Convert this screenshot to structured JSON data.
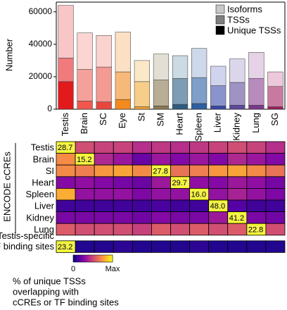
{
  "chart_data": [
    {
      "type": "stacked_bar",
      "ylabel": "Number",
      "categories": [
        "Testis",
        "Brain",
        "SC",
        "Eye",
        "St",
        "SM",
        "Heart",
        "Spleen",
        "Liver",
        "Kidney",
        "Lung",
        "SG"
      ],
      "series": [
        {
          "name": "Isoforms",
          "color": "#c8c8c8",
          "colors": [
            "#f8c6c7",
            "#fad5d2",
            "#fad2ce",
            "#fbe0c4",
            "#fbe8c8",
            "#e3dfd4",
            "#ccdae3",
            "#cdd9ea",
            "#d0d4ed",
            "#dbd6ea",
            "#e6d2e6",
            "#ecc8da"
          ],
          "values": [
            32500,
            22500,
            19500,
            24500,
            13000,
            16000,
            14000,
            18000,
            12000,
            14500,
            16000,
            9000
          ]
        },
        {
          "name": "TSSs",
          "color": "#808080",
          "colors": [
            "#f07a7c",
            "#f5a09a",
            "#f39a92",
            "#f7b97a",
            "#f7cd8a",
            "#b8ae95",
            "#7d9db4",
            "#7f9fc8",
            "#8a94cc",
            "#9f93c4",
            "#b88bbd",
            "#c879a0"
          ],
          "values": [
            14500,
            19500,
            21500,
            17000,
            15500,
            16000,
            16000,
            16000,
            12500,
            14000,
            16500,
            12500
          ]
        },
        {
          "name": "Unique TSSs",
          "color": "#000000",
          "colors": [
            "#e31a1c",
            "#f0584f",
            "#e8473e",
            "#f28a1e",
            "#f0a030",
            "#8a7a55",
            "#2e5d7e",
            "#2f5f9e",
            "#3848a8",
            "#5c4a9c",
            "#7a3a8a",
            "#9a1c5a"
          ],
          "values": [
            17000,
            5000,
            4500,
            6000,
            1500,
            2000,
            3000,
            3500,
            2000,
            2500,
            2500,
            1500
          ]
        }
      ],
      "ylim": [
        0,
        66000
      ],
      "yticks": [
        0,
        20000,
        40000,
        60000
      ],
      "legend": "upper right"
    },
    {
      "type": "heatmap",
      "group_label": "ENCODE cCREs",
      "colorbar_labels": [
        "0",
        "Max"
      ],
      "colorbar_caption": [
        "% of unique TSSs",
        "overlapping with",
        "cCREs or TF binding sites"
      ],
      "rows": [
        {
          "label": "Testis",
          "values": [
            28.7,
            15,
            14,
            14,
            12,
            13,
            12,
            13,
            14,
            15,
            14,
            12
          ],
          "value_labels": [
            "28.7",
            null,
            null,
            null,
            null,
            null,
            null,
            null,
            null,
            null,
            null,
            null
          ]
        },
        {
          "label": "Brain",
          "values": [
            11,
            15.2,
            6,
            5,
            3,
            5,
            4,
            5,
            4,
            6,
            5,
            4
          ],
          "value_labels": [
            null,
            "15.2",
            null,
            null,
            null,
            null,
            null,
            null,
            null,
            null,
            null,
            null
          ]
        },
        {
          "label": "SI",
          "values": [
            20,
            19,
            21,
            22,
            20,
            27.8,
            18,
            19,
            21,
            22,
            20,
            18
          ],
          "value_labels": [
            null,
            null,
            null,
            null,
            null,
            "27.8",
            null,
            null,
            null,
            null,
            null,
            null
          ]
        },
        {
          "label": "Heart",
          "values": [
            8,
            9,
            8,
            7,
            6,
            10,
            29.7,
            9,
            8,
            10,
            9,
            7
          ],
          "value_labels": [
            null,
            null,
            null,
            null,
            null,
            null,
            "29.7",
            null,
            null,
            null,
            null,
            null
          ]
        },
        {
          "label": "Spleen",
          "values": [
            13,
            5,
            5,
            5,
            4,
            5,
            5,
            16,
            5,
            6,
            5,
            4
          ],
          "value_labels": [
            null,
            null,
            null,
            null,
            null,
            null,
            null,
            "16.0",
            null,
            null,
            null,
            null
          ]
        },
        {
          "label": "Liver",
          "values": [
            5,
            5,
            5,
            5,
            5,
            6,
            5,
            5,
            48,
            7,
            5,
            5
          ],
          "value_labels": [
            null,
            null,
            null,
            null,
            null,
            null,
            null,
            null,
            "48.0",
            null,
            null,
            null
          ]
        },
        {
          "label": "Kidney",
          "values": [
            10,
            10,
            10,
            10,
            9,
            11,
            10,
            10,
            14,
            41.2,
            10,
            9
          ],
          "value_labels": [
            null,
            null,
            null,
            null,
            null,
            null,
            null,
            null,
            null,
            "41.2",
            null,
            null
          ]
        },
        {
          "label": "Lung",
          "values": [
            13,
            12,
            12,
            12,
            11,
            13,
            12,
            13,
            12,
            13,
            22.8,
            12
          ],
          "value_labels": [
            null,
            null,
            null,
            null,
            null,
            null,
            null,
            null,
            null,
            null,
            "22.8",
            null
          ]
        }
      ],
      "extra_row": {
        "label": [
          "Testis-specific",
          "TF binding sites"
        ],
        "values": [
          23.2,
          1,
          1,
          1.5,
          1,
          1,
          1,
          1.5,
          1,
          1,
          1,
          1
        ],
        "value_labels": [
          "23.2",
          null,
          null,
          null,
          null,
          null,
          null,
          null,
          null,
          null,
          null,
          null
        ]
      }
    }
  ]
}
